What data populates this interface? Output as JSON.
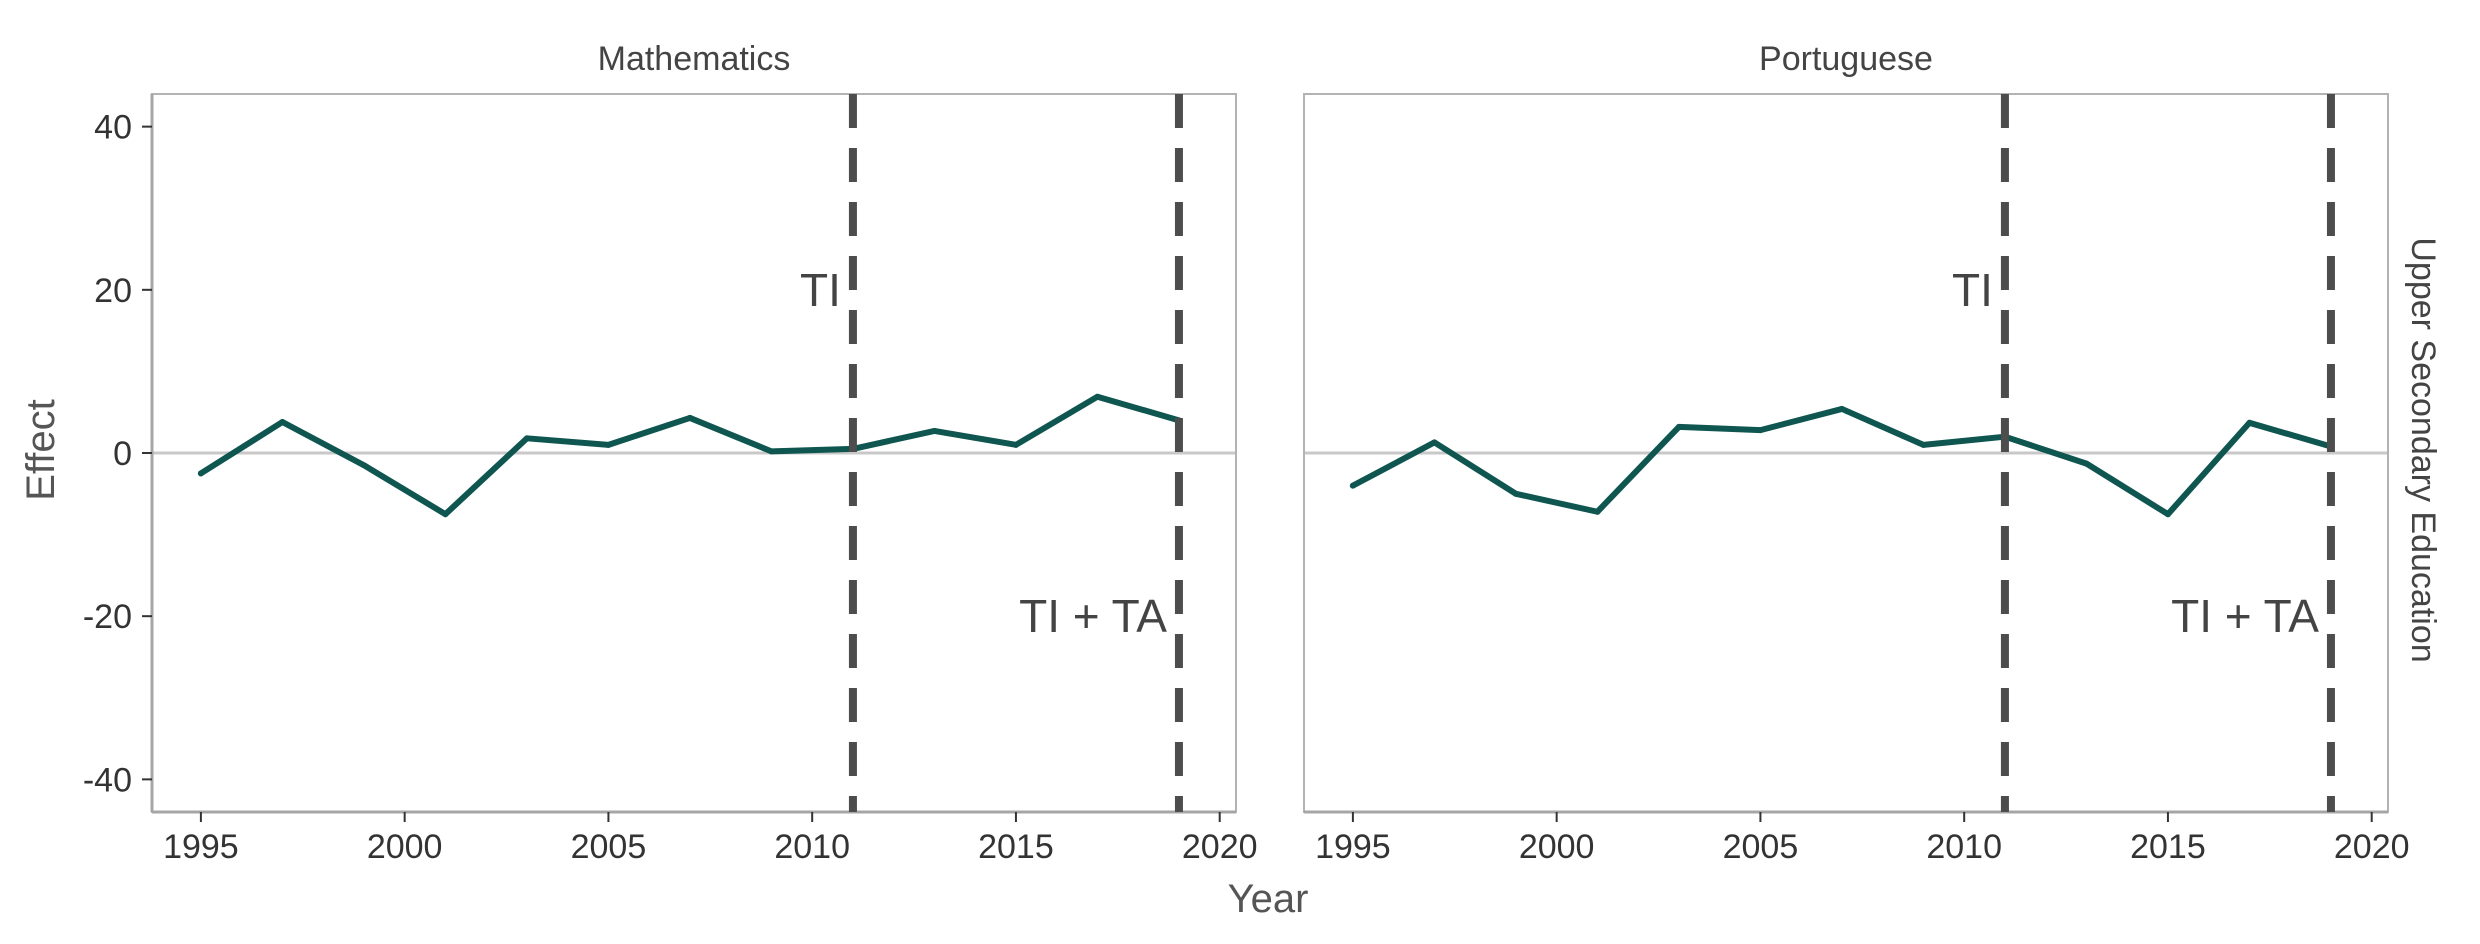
{
  "chart_data": {
    "type": "line",
    "xlabel": "Year",
    "ylabel": "Effect",
    "xlim": [
      1993.8,
      2020.4
    ],
    "ylim": [
      -44,
      44
    ],
    "x_ticks": [
      "1995",
      "2000",
      "2005",
      "2010",
      "2015",
      "2020"
    ],
    "y_ticks": [
      "40",
      "20",
      "0",
      "-20",
      "-40"
    ],
    "row_strip": "Upper Secondary Education",
    "zero_line": 0,
    "grid": false,
    "line_color": "#0f5650",
    "vline_color": "#4d4d4d",
    "events": [
      {
        "label": "TI",
        "x": 2011,
        "label_y": 20
      },
      {
        "label": "TI + TA",
        "x": 2019,
        "label_y": -20
      }
    ],
    "panels": [
      {
        "title": "Mathematics",
        "x": [
          1995,
          1997,
          1999,
          2001,
          2003,
          2005,
          2007,
          2009,
          2011,
          2013,
          2015,
          2017,
          2019
        ],
        "y": [
          -2.5,
          3.8,
          -1.5,
          -7.5,
          1.8,
          1.0,
          4.3,
          0.2,
          0.5,
          2.7,
          1.0,
          6.9,
          4.0
        ]
      },
      {
        "title": "Portuguese",
        "x": [
          1995,
          1997,
          1999,
          2001,
          2003,
          2005,
          2007,
          2009,
          2011,
          2013,
          2015,
          2017,
          2019
        ],
        "y": [
          -4.0,
          1.3,
          -5.0,
          -7.2,
          3.2,
          2.8,
          5.4,
          1.0,
          2.0,
          -1.3,
          -7.5,
          3.7,
          0.8
        ]
      }
    ]
  }
}
